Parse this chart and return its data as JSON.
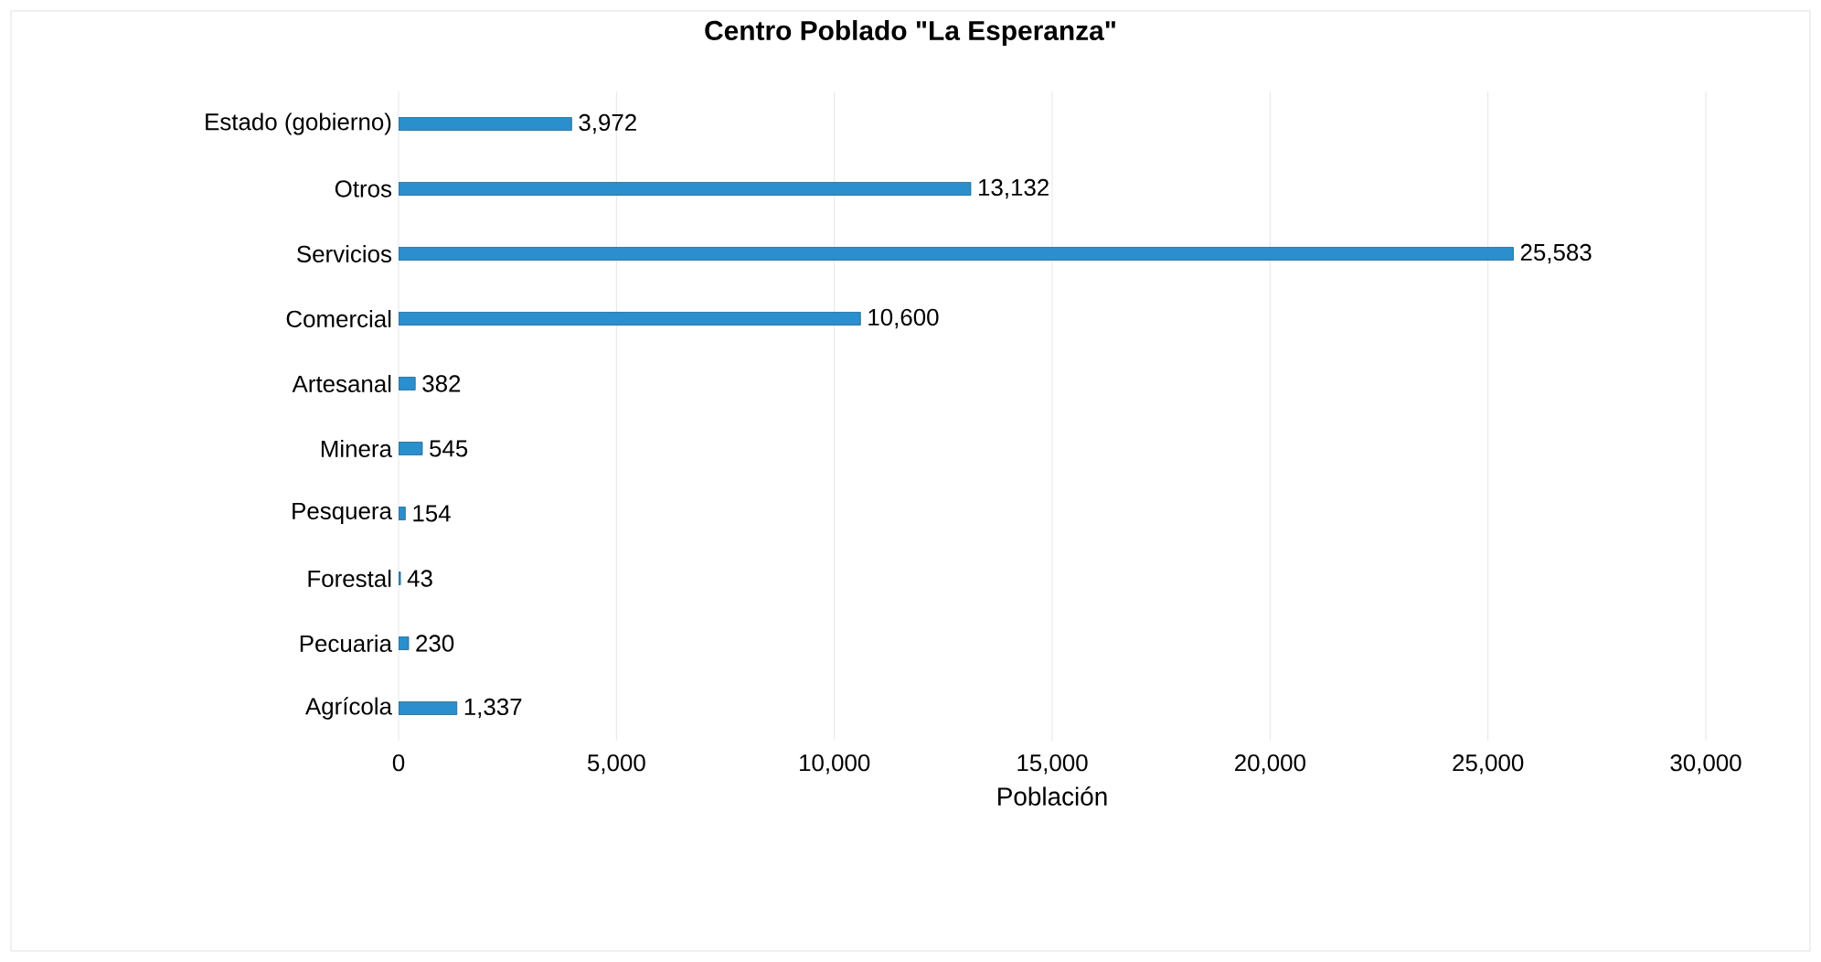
{
  "chart_data": {
    "type": "bar",
    "orientation": "horizontal",
    "title": "Centro Poblado \"La Esperanza\"",
    "xlabel": "Población",
    "categories": [
      "Estado (gobierno)",
      "Otros",
      "Servicios",
      "Comercial",
      "Artesanal",
      "Minera",
      "Pesquera",
      "Forestal",
      "Pecuaria",
      "Agrícola"
    ],
    "values": [
      3972,
      13132,
      25583,
      10600,
      382,
      545,
      154,
      43,
      230,
      1337
    ],
    "color": "#2a8fcc",
    "xlim": [
      0,
      30000
    ],
    "xticks": [
      {
        "value": 0,
        "label": "0"
      },
      {
        "value": 5000,
        "label": "5,000"
      },
      {
        "value": 10000,
        "label": "10,000"
      },
      {
        "value": 15000,
        "label": "15,000"
      },
      {
        "value": 20000,
        "label": "20,000"
      },
      {
        "value": 25000,
        "label": "25,000"
      },
      {
        "value": 30000,
        "label": "30,000"
      }
    ],
    "grid": "x",
    "data_labels": true,
    "value_labels": [
      "3,972",
      "13,132",
      "25,583",
      "10,600",
      "382",
      "545",
      "154",
      "43",
      "230",
      "1,337"
    ]
  }
}
